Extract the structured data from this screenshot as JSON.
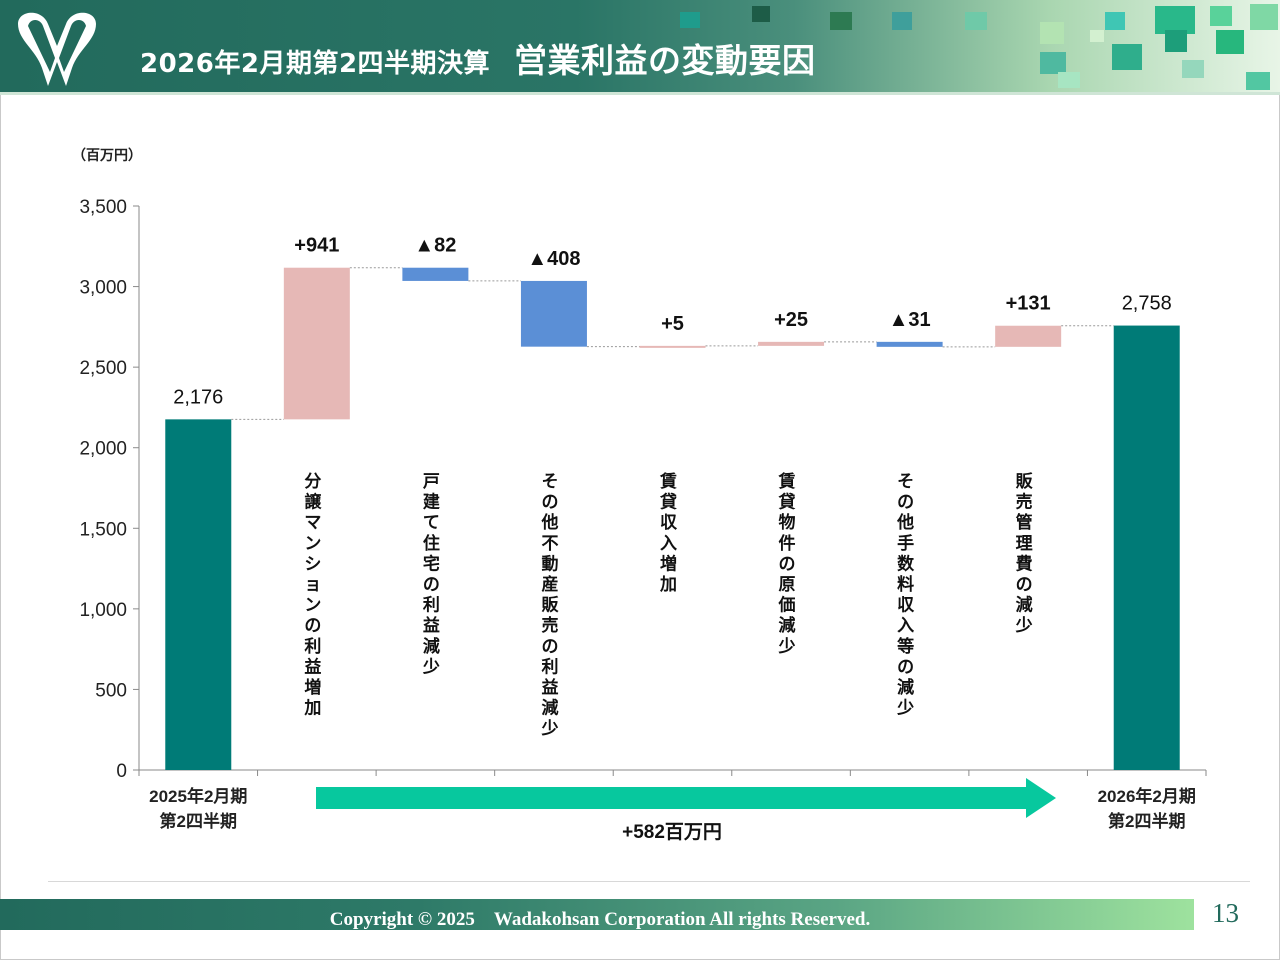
{
  "header": {
    "title_sub": "2026年2月期第2四半期決算",
    "title_main": "営業利益の変動要因",
    "logo_icon": "wadakohsan-w-logo-icon"
  },
  "colors": {
    "total": "#007b77",
    "increase": "#e6b8b6",
    "decrease": "#5b8fd6",
    "arrow": "#07c89e",
    "header": "#226a5c"
  },
  "chart_data": {
    "type": "waterfall",
    "unit_label": "（百万円）",
    "ylim": [
      0,
      3500
    ],
    "yticks": [
      {
        "value": 0,
        "label": "0"
      },
      {
        "value": 500,
        "label": "500"
      },
      {
        "value": 1000,
        "label": "1,000"
      },
      {
        "value": 1500,
        "label": "1,500"
      },
      {
        "value": 2000,
        "label": "2,000"
      },
      {
        "value": 2500,
        "label": "2,500"
      },
      {
        "value": 3000,
        "label": "3,000"
      },
      {
        "value": 3500,
        "label": "3,500"
      }
    ],
    "steps": [
      {
        "kind": "total",
        "value": 2176,
        "label": "2,176",
        "category": [
          "2025年2月期",
          "第2四半期"
        ]
      },
      {
        "kind": "increase",
        "value": 941,
        "label": "+941",
        "category_vertical": "分譲マンションの利益増加"
      },
      {
        "kind": "decrease",
        "value": -82,
        "label": "▲82",
        "category_vertical": "戸建て住宅の利益減少"
      },
      {
        "kind": "decrease",
        "value": -408,
        "label": "▲408",
        "category_vertical": "その他不動産販売の利益減少"
      },
      {
        "kind": "increase",
        "value": 5,
        "label": "+5",
        "category_vertical": "賃貸収入増加"
      },
      {
        "kind": "increase",
        "value": 25,
        "label": "+25",
        "category_vertical": "賃貸物件の原価減少"
      },
      {
        "kind": "decrease",
        "value": -31,
        "label": "▲31",
        "category_vertical": "その他手数料収入等の減少"
      },
      {
        "kind": "increase",
        "value": 131,
        "label": "+131",
        "category_vertical": "販売管理費の減少"
      },
      {
        "kind": "total",
        "value": 2758,
        "label": "2,758",
        "category": [
          "2026年2月期",
          "第2四半期"
        ]
      }
    ],
    "change_arrow": {
      "label": "+582百万円",
      "value": 582
    }
  },
  "footer": {
    "copyright": "Copyright © 2025　Wadakohsan Corporation All rights Reserved.",
    "page_number": "13"
  }
}
